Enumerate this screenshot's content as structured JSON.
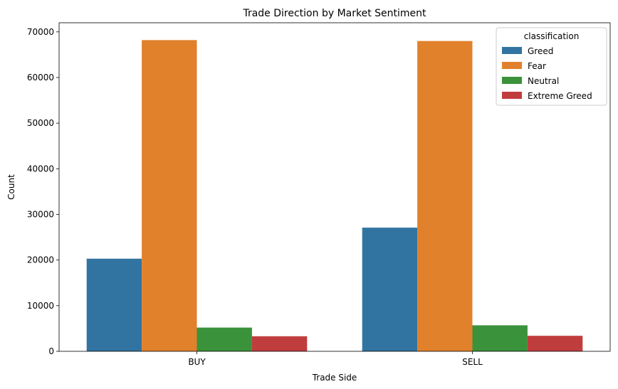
{
  "chart_data": {
    "type": "bar",
    "title": "Trade Direction by Market Sentiment",
    "xlabel": "Trade Side",
    "ylabel": "Count",
    "categories": [
      "BUY",
      "SELL"
    ],
    "ylim": [
      0,
      72000
    ],
    "yticks": [
      0,
      10000,
      20000,
      30000,
      40000,
      50000,
      60000,
      70000
    ],
    "grid": false,
    "legend": {
      "title": "classification",
      "placement": "top-right"
    },
    "series": [
      {
        "name": "Greed",
        "color": "#3274a1",
        "values": [
          20300,
          27100
        ]
      },
      {
        "name": "Fear",
        "color": "#e1812c",
        "values": [
          68200,
          68000
        ]
      },
      {
        "name": "Neutral",
        "color": "#3a923a",
        "values": [
          5200,
          5700
        ]
      },
      {
        "name": "Extreme Greed",
        "color": "#c03d3e",
        "values": [
          3300,
          3400
        ]
      }
    ]
  }
}
